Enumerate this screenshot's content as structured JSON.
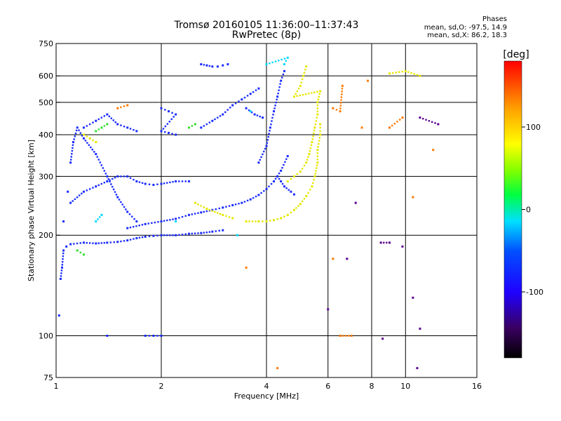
{
  "chart_data": {
    "type": "scatter",
    "title": "Tromsø 20160105 11:36:00–11:37:43",
    "subtitle": "RwPretec (8p)",
    "xlabel": "Frequency [MHz]",
    "ylabel": "Stationary phase Virtual Height [km]",
    "x_scale": "log",
    "y_scale": "log",
    "xlim": [
      1,
      16
    ],
    "ylim": [
      75,
      750
    ],
    "x_ticks": [
      1,
      2,
      4,
      6,
      8,
      10,
      16
    ],
    "x_tick_labels": [
      "1",
      "2",
      "4",
      "6",
      "8",
      "10",
      "16"
    ],
    "x_grid": [
      1,
      2,
      4,
      6,
      8,
      10,
      16
    ],
    "y_ticks": [
      75,
      100,
      200,
      300,
      400,
      500,
      600,
      750
    ],
    "y_tick_labels": [
      "75",
      "100",
      "200",
      "300",
      "400",
      "500",
      "600",
      "750"
    ],
    "y_grid": [
      100,
      200,
      300,
      400,
      500,
      600
    ],
    "grid": true,
    "annotation": {
      "title": "Phases",
      "line1": "mean, sd,O: -97.5, 14.9",
      "line2": "mean, sd,X:  86.2, 18.3"
    },
    "colorbar": {
      "label": "[deg]",
      "range": [
        -180,
        180
      ],
      "ticks": [
        100,
        0,
        -100
      ],
      "tick_labels": [
        "100",
        "0",
        "-100"
      ],
      "colormap": "rainbow (black-purple-blue-cyan-green-yellow-red)",
      "placement": "right"
    },
    "series": [
      {
        "points": [
          [
            1.02,
            115
          ],
          [
            1.03,
            148
          ],
          [
            1.04,
            160
          ],
          [
            1.05,
            180
          ],
          [
            1.07,
            185
          ],
          [
            1.1,
            188
          ],
          [
            1.2,
            190
          ],
          [
            1.3,
            189
          ],
          [
            1.4,
            190
          ],
          [
            1.5,
            191
          ],
          [
            1.6,
            193
          ],
          [
            1.7,
            196
          ],
          [
            1.8,
            198
          ],
          [
            1.9,
            199
          ],
          [
            2.0,
            200
          ],
          [
            2.2,
            200
          ],
          [
            2.4,
            202
          ],
          [
            2.6,
            203
          ],
          [
            2.8,
            205
          ],
          [
            3.0,
            207
          ],
          [
            1.6,
            210
          ],
          [
            1.8,
            216
          ],
          [
            2.0,
            220
          ],
          [
            2.2,
            224
          ],
          [
            2.4,
            230
          ],
          [
            2.6,
            234
          ],
          [
            2.8,
            238
          ],
          [
            3.0,
            242
          ],
          [
            3.2,
            246
          ],
          [
            3.4,
            250
          ],
          [
            3.6,
            256
          ],
          [
            3.8,
            264
          ],
          [
            4.0,
            275
          ],
          [
            4.2,
            290
          ],
          [
            4.4,
            312
          ],
          [
            4.6,
            345
          ],
          [
            3.8,
            330
          ],
          [
            4.0,
            370
          ],
          [
            4.1,
            420
          ],
          [
            4.2,
            470
          ],
          [
            4.3,
            520
          ],
          [
            4.4,
            580
          ],
          [
            4.5,
            620
          ],
          [
            1.05,
            220
          ],
          [
            1.08,
            270
          ],
          [
            1.1,
            330
          ],
          [
            1.12,
            380
          ],
          [
            1.15,
            420
          ],
          [
            1.2,
            390
          ],
          [
            1.3,
            350
          ],
          [
            1.4,
            300
          ],
          [
            1.5,
            260
          ],
          [
            1.6,
            235
          ],
          [
            1.7,
            220
          ],
          [
            1.1,
            250
          ],
          [
            1.2,
            270
          ],
          [
            1.3,
            280
          ],
          [
            1.4,
            290
          ],
          [
            1.5,
            300
          ],
          [
            1.6,
            300
          ],
          [
            1.7,
            290
          ],
          [
            1.8,
            285
          ],
          [
            1.9,
            283
          ],
          [
            2.0,
            285
          ],
          [
            2.2,
            290
          ],
          [
            2.4,
            290
          ],
          [
            2.6,
            420
          ],
          [
            2.8,
            440
          ],
          [
            3.0,
            460
          ],
          [
            3.2,
            490
          ],
          [
            3.4,
            510
          ],
          [
            3.6,
            530
          ],
          [
            3.8,
            550
          ],
          [
            2.6,
            650
          ],
          [
            2.7,
            645
          ],
          [
            2.8,
            640
          ],
          [
            2.9,
            640
          ],
          [
            3.0,
            645
          ],
          [
            3.1,
            650
          ],
          [
            2.0,
            480
          ],
          [
            2.1,
            470
          ],
          [
            2.2,
            460
          ],
          [
            2.0,
            410
          ],
          [
            2.1,
            405
          ],
          [
            2.2,
            400
          ],
          [
            3.5,
            480
          ],
          [
            3.7,
            460
          ],
          [
            3.9,
            450
          ],
          [
            4.3,
            300
          ],
          [
            4.4,
            290
          ],
          [
            4.5,
            280
          ],
          [
            4.7,
            270
          ],
          [
            4.8,
            265
          ],
          [
            1.2,
            420
          ],
          [
            1.3,
            440
          ],
          [
            1.4,
            460
          ],
          [
            1.5,
            430
          ],
          [
            1.6,
            420
          ],
          [
            1.7,
            410
          ],
          [
            1.4,
            100
          ],
          [
            1.8,
            100
          ],
          [
            1.9,
            100
          ],
          [
            2.0,
            100
          ]
        ]
      },
      {
        "points": [
          [
            3.5,
            220
          ],
          [
            3.8,
            220
          ],
          [
            4.0,
            220
          ],
          [
            4.2,
            222
          ],
          [
            4.4,
            225
          ],
          [
            4.6,
            230
          ],
          [
            4.8,
            238
          ],
          [
            5.0,
            248
          ],
          [
            5.2,
            262
          ],
          [
            5.4,
            280
          ],
          [
            5.5,
            300
          ],
          [
            5.6,
            330
          ],
          [
            5.6,
            360
          ],
          [
            5.7,
            400
          ],
          [
            5.7,
            430
          ],
          [
            4.6,
            290
          ],
          [
            4.8,
            300
          ],
          [
            5.0,
            310
          ],
          [
            5.2,
            330
          ],
          [
            5.3,
            350
          ],
          [
            5.4,
            380
          ],
          [
            5.5,
            420
          ],
          [
            5.6,
            460
          ],
          [
            5.6,
            500
          ],
          [
            5.7,
            540
          ],
          [
            4.8,
            520
          ],
          [
            5.0,
            560
          ],
          [
            5.1,
            600
          ],
          [
            5.2,
            640
          ],
          [
            2.5,
            250
          ],
          [
            2.7,
            240
          ],
          [
            3.0,
            230
          ],
          [
            3.2,
            225
          ],
          [
            1.2,
            400
          ],
          [
            1.25,
            390
          ],
          [
            1.3,
            380
          ],
          [
            9.0,
            610
          ],
          [
            10.0,
            620
          ],
          [
            11.0,
            600
          ]
        ]
      },
      {
        "points": [
          [
            1.3,
            410
          ],
          [
            1.35,
            420
          ],
          [
            1.4,
            430
          ],
          [
            1.15,
            180
          ],
          [
            1.2,
            175
          ],
          [
            2.4,
            420
          ],
          [
            2.5,
            430
          ]
        ]
      },
      {
        "points": [
          [
            1.3,
            220
          ],
          [
            1.35,
            230
          ],
          [
            2.2,
            220
          ],
          [
            3.3,
            200
          ],
          [
            3.6,
            470
          ],
          [
            4.0,
            650
          ],
          [
            4.6,
            680
          ],
          [
            4.5,
            650
          ]
        ]
      },
      {
        "points": [
          [
            6.2,
            480
          ],
          [
            6.5,
            470
          ],
          [
            6.6,
            560
          ],
          [
            7.5,
            420
          ],
          [
            7.8,
            580
          ],
          [
            9.0,
            420
          ],
          [
            9.8,
            450
          ],
          [
            10.5,
            260
          ],
          [
            12.0,
            360
          ],
          [
            6.2,
            170
          ],
          [
            6.5,
            100
          ],
          [
            7.0,
            100
          ],
          [
            4.3,
            80
          ],
          [
            3.5,
            160
          ],
          [
            1.6,
            490
          ],
          [
            1.5,
            480
          ]
        ]
      },
      {
        "points": [
          [
            6.0,
            120
          ],
          [
            6.8,
            170
          ],
          [
            8.6,
            98
          ],
          [
            9.8,
            185
          ],
          [
            10.8,
            80
          ],
          [
            10.5,
            130
          ],
          [
            11.0,
            105
          ],
          [
            12.4,
            430
          ],
          [
            11.0,
            450
          ],
          [
            7.2,
            250
          ],
          [
            8.5,
            190
          ],
          [
            9.0,
            190
          ]
        ]
      }
    ]
  }
}
